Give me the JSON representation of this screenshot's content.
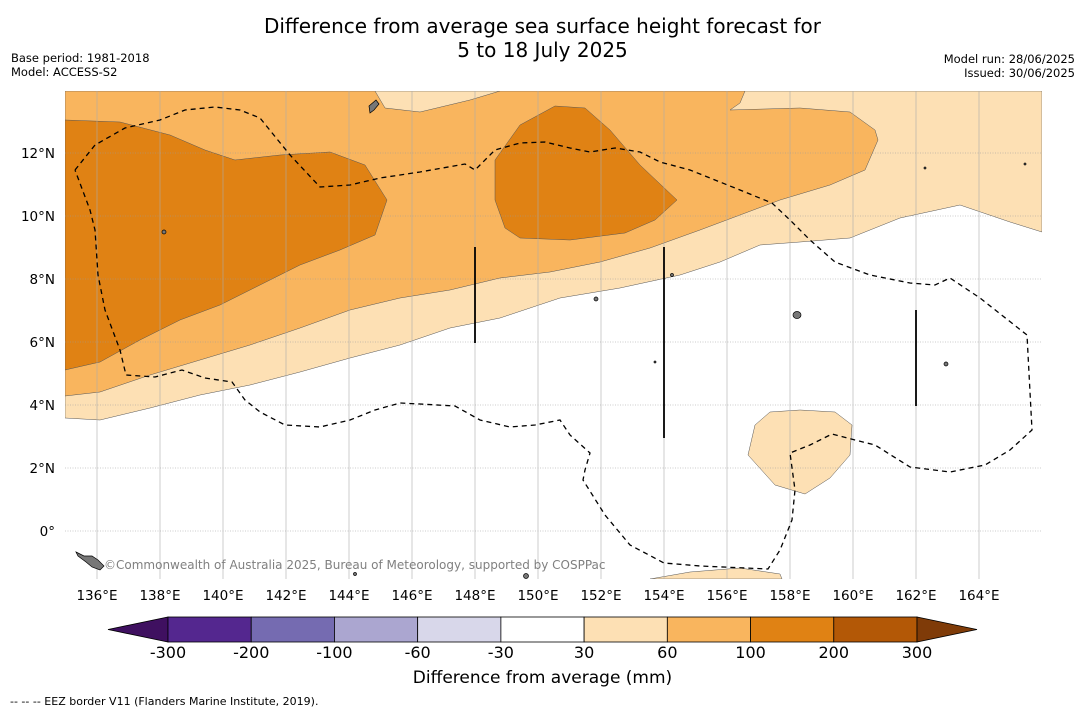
{
  "title_line1": "Difference from average sea surface height forecast for",
  "title_line2": "5 to 18 July 2025",
  "base_period": "Base period: 1981-2018",
  "model": "Model: ACCESS-S2",
  "model_run": "Model run: 28/06/2025",
  "issued": "Issued: 30/06/2025",
  "credit": "©Commonwealth of Australia 2025, Bureau of Meteorology, supported by COSPPac",
  "footer": "--  --  -- EEZ border V11 (Flanders Marine Institute, 2019).",
  "lon_labels": [
    "136°E",
    "138°E",
    "140°E",
    "142°E",
    "144°E",
    "146°E",
    "148°E",
    "150°E",
    "152°E",
    "154°E",
    "156°E",
    "158°E",
    "160°E",
    "162°E",
    "164°E"
  ],
  "lat_labels": [
    "12°N",
    "10°N",
    "8°N",
    "6°N",
    "4°N",
    "2°N",
    "0°"
  ],
  "colorbar": {
    "label": "Difference from average (mm)",
    "ticks": [
      "-300",
      "-200",
      "-100",
      "-60",
      "-30",
      "30",
      "60",
      "100",
      "200",
      "300"
    ],
    "colors": [
      "#3f1060",
      "#54278f",
      "#756bb1",
      "#aba6d0",
      "#d8d7ea",
      "#ffffff",
      "#fde0b4",
      "#f9b55e",
      "#e08214",
      "#b35806",
      "#7f3b08"
    ]
  },
  "legend_colors": {
    "band_30_60": "#fde0b4",
    "band_60_100": "#f9b55e",
    "band_100_200": "#e08214"
  }
}
